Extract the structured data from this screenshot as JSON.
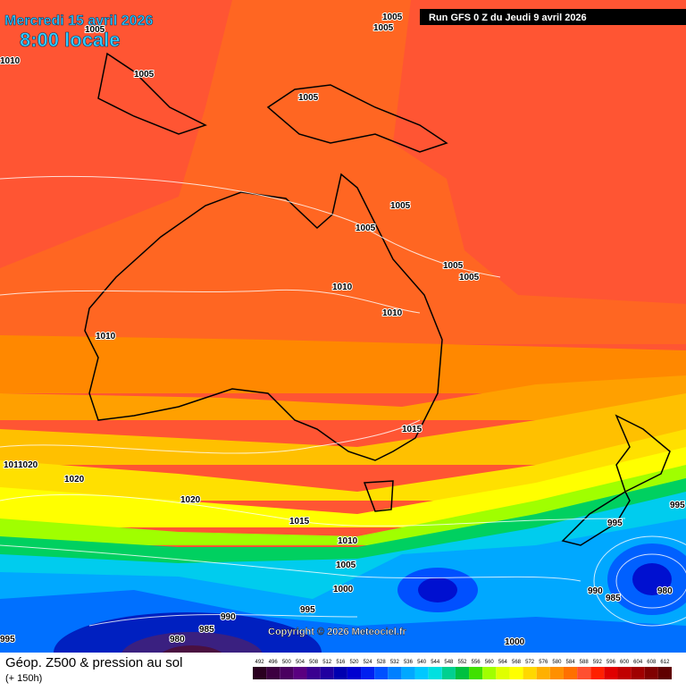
{
  "header": {
    "date": "Mercredi 15 avril 2026",
    "time": "8:00 locale",
    "run": "Run GFS 0 Z du Jeudi 9 avril 2026"
  },
  "isobar_labels": [
    1005,
    1005,
    1005,
    1010,
    1005,
    1005,
    1005,
    1005,
    1005,
    1005,
    1010,
    1010,
    1010,
    1015,
    1010,
    1020,
    1020,
    1020,
    1015,
    995,
    995,
    1010,
    1005,
    1000,
    990,
    980,
    985,
    995,
    990,
    985,
    980,
    995,
    1000
  ],
  "copyright": "Copyright © 2026 Meteociel.fr",
  "footer": {
    "title": "Géop. Z500 & pression au sol",
    "subtitle": "(+ 150h)"
  },
  "scale": {
    "ticks": [
      492,
      496,
      500,
      504,
      508,
      512,
      516,
      520,
      524,
      528,
      532,
      536,
      540,
      544,
      548,
      552,
      556,
      560,
      564,
      568,
      572,
      576,
      580,
      584,
      588,
      592,
      596,
      600,
      604,
      608,
      612
    ],
    "colors": [
      "#2a0020",
      "#3c0040",
      "#4a0060",
      "#5a0080",
      "#3a0090",
      "#2000a0",
      "#0000b0",
      "#0000d0",
      "#0020f0",
      "#0050ff",
      "#0080ff",
      "#00a8ff",
      "#00c8ff",
      "#00e0e0",
      "#00d090",
      "#00c040",
      "#40e000",
      "#a0ff00",
      "#e0ff00",
      "#ffff00",
      "#ffd800",
      "#ffb000",
      "#ff9000",
      "#ff7000",
      "#ff5030",
      "#ff2000",
      "#e00000",
      "#c00000",
      "#a00000",
      "#800000",
      "#600000"
    ]
  }
}
